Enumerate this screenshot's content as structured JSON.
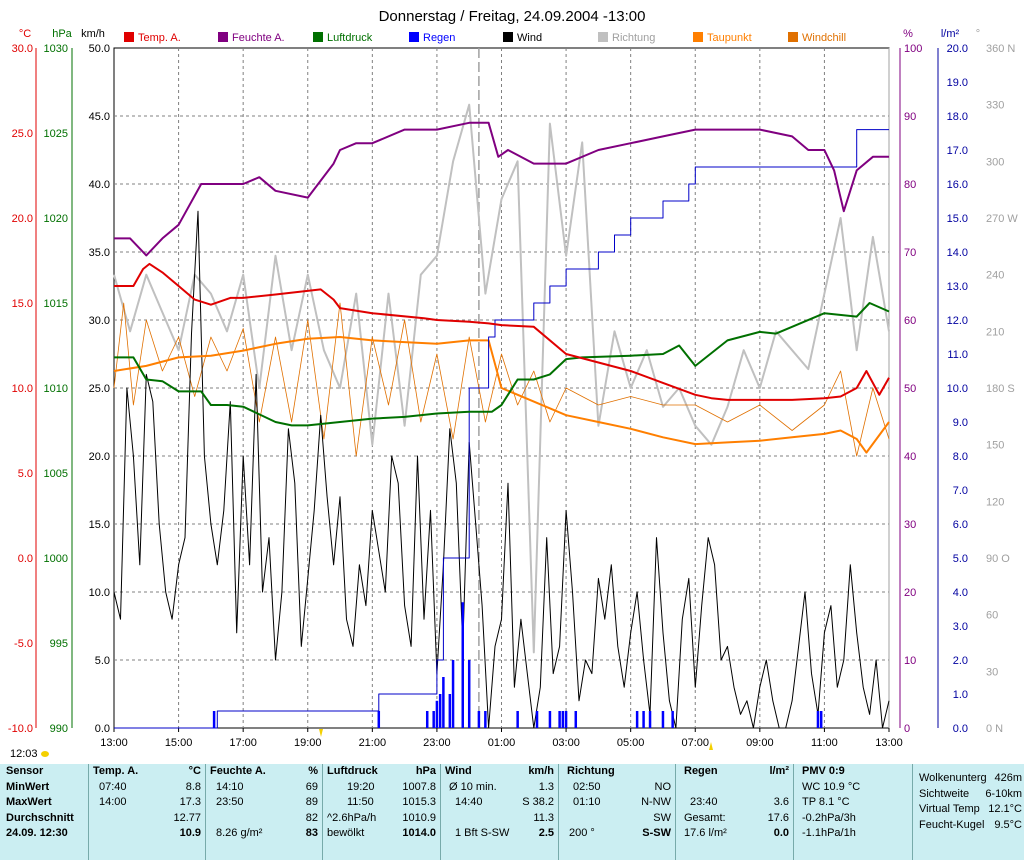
{
  "chart_data": {
    "type": "line",
    "title": "Donnerstag / Freitag, 24.09.2004  -13:00",
    "legend": [
      "Temp. A.",
      "Feuchte A.",
      "Luftdruck",
      "Regen",
      "Wind",
      "Richtung",
      "Taupunkt",
      "Windchill"
    ],
    "colors": {
      "temp": "#e00000",
      "hum": "#800080",
      "press": "#007000",
      "rain": "#0000ff",
      "wind": "#000000",
      "dir": "#c0c0c0",
      "dew": "#ff7f00",
      "chill": "#e07000"
    },
    "axes": {
      "temp": {
        "label": "°C",
        "ticks": [
          "30.0",
          "25.0",
          "20.0",
          "15.0",
          "10.0",
          "5.0",
          "0.0",
          "-5.0",
          "-10.0"
        ],
        "range": [
          -10,
          30
        ]
      },
      "press": {
        "label": "hPa",
        "ticks": [
          "1030",
          "1025",
          "1020",
          "1015",
          "1010",
          "1005",
          "1000",
          "995",
          "990"
        ],
        "range": [
          990,
          1030
        ]
      },
      "wind": {
        "label": "km/h",
        "ticks": [
          "50.0",
          "45.0",
          "40.0",
          "35.0",
          "30.0",
          "25.0",
          "20.0",
          "15.0",
          "10.0",
          "5.0",
          "0.0"
        ],
        "range": [
          0,
          50
        ]
      },
      "hum": {
        "label": "%",
        "ticks": [
          "100",
          "90",
          "80",
          "70",
          "60",
          "50",
          "40",
          "30",
          "20",
          "10",
          "0"
        ],
        "range": [
          0,
          100
        ]
      },
      "rain": {
        "label": "l/m²",
        "ticks": [
          "20.0",
          "19.0",
          "18.0",
          "17.0",
          "16.0",
          "15.0",
          "14.0",
          "13.0",
          "12.0",
          "11.0",
          "10.0",
          "9.0",
          "8.0",
          "7.0",
          "6.0",
          "5.0",
          "4.0",
          "3.0",
          "2.0",
          "1.0",
          "0.0"
        ],
        "range": [
          0,
          20
        ]
      },
      "dir": {
        "label": "°",
        "ticks": [
          "360 N",
          "330",
          "300",
          "270 W",
          "240",
          "210",
          "180 S",
          "150",
          "120",
          "90 O",
          "60",
          "30",
          "0 N"
        ],
        "range": [
          0,
          360
        ]
      },
      "x": {
        "ticks": [
          "13:00",
          "15:00",
          "17:00",
          "19:00",
          "21:00",
          "23:00",
          "01:00",
          "03:00",
          "05:00",
          "07:00",
          "09:00",
          "11:00",
          "13:00"
        ],
        "range_hours": [
          0,
          24
        ]
      }
    },
    "series": [
      {
        "name": "Temp. A.",
        "key": "temp",
        "axis": "temp",
        "x": [
          0,
          0.6,
          0.9,
          1.1,
          1.5,
          2,
          2.5,
          3,
          3.6,
          4,
          5,
          6.4,
          6.8,
          7,
          8,
          9.6,
          10,
          11,
          11.6,
          12,
          13,
          14,
          15,
          16,
          17,
          18,
          18.5,
          19,
          20,
          21,
          22,
          22.5,
          23,
          23.3,
          23.7,
          24
        ],
        "y": [
          16,
          16,
          17,
          17.3,
          16.8,
          16,
          15.2,
          14.9,
          15.3,
          15.3,
          15.5,
          15.8,
          15.2,
          14.7,
          14.4,
          14.1,
          14,
          13.9,
          13.8,
          13.7,
          13.6,
          12,
          11.5,
          11,
          10.3,
          9.6,
          9.4,
          9.3,
          9.3,
          9.3,
          9.4,
          9.5,
          10,
          11,
          9.6,
          10.6
        ]
      },
      {
        "name": "Feuchte A.",
        "key": "hum",
        "axis": "hum",
        "x": [
          0,
          0.5,
          1,
          1.5,
          2,
          2.7,
          3.5,
          4,
          4.5,
          5,
          6,
          6.8,
          7,
          7.5,
          8,
          9,
          10,
          11,
          11.6,
          11.9,
          12.2,
          13,
          14,
          15,
          16,
          17,
          18,
          19,
          20,
          21,
          21.5,
          22,
          22.3,
          22.6,
          23,
          23.5,
          24
        ],
        "y": [
          72,
          72,
          69.5,
          72,
          74,
          80,
          80,
          80,
          81,
          79,
          78,
          83,
          85,
          86,
          86,
          88,
          88,
          89,
          89,
          84,
          85,
          83,
          83,
          85,
          86,
          87,
          88,
          88,
          88,
          87,
          85,
          85,
          82,
          76,
          82,
          84,
          84
        ]
      },
      {
        "name": "Luftdruck",
        "key": "press",
        "axis": "press",
        "x": [
          0,
          0.6,
          1,
          1.5,
          2,
          2.7,
          3,
          3.5,
          4,
          5,
          5.5,
          6,
          7,
          8,
          9,
          10,
          11,
          11.7,
          12,
          12.5,
          13,
          13.5,
          14,
          14.5,
          16,
          17,
          17.5,
          18,
          19,
          20,
          20.5,
          21,
          22,
          23,
          23.4,
          24
        ],
        "y": [
          1011.8,
          1011.8,
          1010.5,
          1010.4,
          1009.8,
          1009.8,
          1009,
          1009,
          1008.9,
          1008,
          1007.8,
          1007.8,
          1008,
          1008.2,
          1008.3,
          1008.5,
          1008.6,
          1008.6,
          1009,
          1010.5,
          1010.5,
          1010.8,
          1011.7,
          1011.8,
          1011.9,
          1012,
          1012.5,
          1011.3,
          1012.8,
          1013.3,
          1013.2,
          1013.6,
          1014.4,
          1014.2,
          1015,
          1014.5
        ]
      },
      {
        "name": "Regen (Summe)",
        "key": "rain",
        "axis": "rain",
        "x": [
          0,
          3,
          3.2,
          8,
          8.2,
          9.8,
          10,
          10.2,
          11,
          11.6,
          11.8,
          12,
          13,
          13.5,
          14,
          15,
          15.5,
          16,
          16.5,
          17,
          17.8,
          18,
          20,
          21,
          22,
          22.5,
          23,
          23.5,
          24
        ],
        "y": [
          0,
          0,
          0.5,
          0.5,
          1,
          1,
          2,
          5,
          10,
          11.5,
          12,
          12,
          12.5,
          13,
          13.5,
          14,
          14.5,
          15,
          15,
          15.5,
          16,
          16.5,
          16.5,
          16.5,
          16.5,
          16.5,
          17.6,
          17.6,
          17.6
        ]
      },
      {
        "name": "Taupunkt",
        "key": "dew",
        "axis": "temp",
        "x": [
          0,
          1,
          2,
          3,
          4,
          5,
          6,
          7,
          8,
          9,
          10,
          11,
          11.6,
          12,
          13,
          14,
          15,
          16,
          17,
          18,
          19,
          20,
          21,
          22,
          22.5,
          23,
          23.3,
          24
        ],
        "y": [
          11,
          11.3,
          11.8,
          11.9,
          12.2,
          12.6,
          12.9,
          13,
          12.8,
          12.7,
          12.6,
          12.8,
          12.8,
          10,
          9.2,
          8.4,
          8,
          7.6,
          7.1,
          6.7,
          6.8,
          6.9,
          7.1,
          7.3,
          7.5,
          7,
          6.2,
          8
        ]
      },
      {
        "name": "Windchill",
        "key": "chill",
        "axis": "temp",
        "x": [
          0,
          0.3,
          0.6,
          1,
          1.5,
          2,
          2.5,
          3,
          3.5,
          4,
          4.5,
          5,
          5.5,
          6,
          6.5,
          7,
          7.5,
          8,
          8.5,
          9,
          9.5,
          10,
          10.5,
          11,
          11.5,
          12,
          12.5,
          13,
          13.5,
          14,
          15,
          16,
          17,
          18,
          19,
          20,
          21,
          22,
          22.5,
          23,
          23.5,
          24
        ],
        "y": [
          10,
          15,
          9,
          14,
          11,
          13,
          9.5,
          13,
          11,
          13.5,
          8,
          13,
          8,
          14,
          7,
          15,
          6,
          13,
          9,
          14,
          8,
          12,
          7,
          13,
          8,
          12,
          9,
          11,
          8,
          10,
          9,
          9.5,
          9,
          9,
          8,
          9,
          7.5,
          9,
          11,
          6,
          10,
          7
        ]
      },
      {
        "name": "Wind",
        "key": "wind",
        "axis": "wind",
        "x": [
          0,
          0.2,
          0.4,
          0.6,
          0.8,
          1,
          1.2,
          1.4,
          1.6,
          1.8,
          2,
          2.2,
          2.4,
          2.6,
          2.8,
          3,
          3.2,
          3.4,
          3.6,
          3.8,
          4,
          4.2,
          4.4,
          4.6,
          4.8,
          5,
          5.2,
          5.4,
          5.6,
          5.8,
          6,
          6.2,
          6.4,
          6.6,
          6.8,
          7,
          7.2,
          7.4,
          7.6,
          7.8,
          8,
          8.2,
          8.4,
          8.6,
          8.8,
          9,
          9.2,
          9.4,
          9.6,
          9.8,
          10,
          10.2,
          10.4,
          10.6,
          10.8,
          11,
          11.2,
          11.4,
          11.6,
          11.8,
          12,
          12.2,
          12.4,
          12.6,
          12.8,
          13,
          13.2,
          13.4,
          13.6,
          13.8,
          14,
          14.2,
          14.4,
          14.6,
          14.8,
          15,
          15.2,
          15.4,
          15.6,
          15.8,
          16,
          16.2,
          16.4,
          16.6,
          16.8,
          17,
          17.2,
          17.4,
          17.6,
          17.8,
          18,
          18.2,
          18.4,
          18.6,
          18.8,
          19,
          19.2,
          19.4,
          19.6,
          19.8,
          20,
          20.2,
          20.4,
          20.6,
          20.8,
          21,
          21.2,
          21.4,
          21.6,
          21.8,
          22,
          22.2,
          22.4,
          22.6,
          22.8,
          23,
          23.2,
          23.4,
          23.6,
          23.8,
          24
        ],
        "y": [
          10,
          8,
          25,
          20,
          12,
          26,
          24,
          15,
          10,
          8,
          12,
          14,
          29,
          38,
          20,
          15,
          12,
          16,
          24,
          7,
          20,
          12,
          26,
          10,
          14,
          5,
          10,
          22,
          18,
          6,
          11,
          16,
          23,
          17,
          12,
          17,
          8,
          6,
          12,
          9,
          16,
          13,
          10,
          20,
          18,
          9,
          6,
          20,
          8,
          16,
          4,
          12,
          22,
          18,
          6,
          21,
          15,
          9,
          0,
          6,
          8,
          18,
          3,
          8,
          4,
          0,
          3,
          14,
          4,
          6,
          16,
          10,
          2,
          5,
          4,
          11,
          8,
          12,
          6,
          3,
          7,
          10,
          5,
          1,
          14,
          7,
          2,
          0,
          8,
          11,
          3,
          9,
          14,
          12,
          5,
          6,
          3,
          1,
          2,
          0,
          3,
          5,
          2,
          0,
          0,
          2,
          6,
          10,
          4,
          1,
          7,
          9,
          3,
          5,
          12,
          7,
          3,
          1,
          5,
          0,
          2
        ]
      },
      {
        "name": "Richtung",
        "key": "dir",
        "axis": "dir",
        "x": [
          0,
          0.5,
          1,
          1.5,
          2,
          2.5,
          3,
          3.5,
          4,
          4.5,
          5,
          5.5,
          6,
          6.5,
          7,
          7.5,
          8,
          8.5,
          9,
          9.5,
          10,
          10.5,
          11,
          11.5,
          12,
          12.5,
          13,
          13.5,
          14,
          14.5,
          15,
          15.5,
          16,
          16.5,
          17,
          17.5,
          18,
          18.5,
          19,
          19.5,
          20,
          20.5,
          21,
          21.5,
          22,
          22.5,
          23,
          23.5,
          24
        ],
        "y": [
          240,
          210,
          240,
          220,
          200,
          240,
          230,
          210,
          240,
          180,
          250,
          200,
          240,
          200,
          180,
          230,
          150,
          230,
          160,
          240,
          250,
          300,
          330,
          230,
          280,
          300,
          40,
          320,
          250,
          310,
          160,
          210,
          180,
          200,
          170,
          180,
          160,
          150,
          170,
          200,
          180,
          210,
          200,
          190,
          230,
          270,
          200,
          260,
          210
        ]
      }
    ],
    "rain_bars": {
      "x": [
        3.1,
        8.2,
        9.7,
        9.9,
        10,
        10.1,
        10.2,
        10.4,
        10.5,
        10.8,
        11,
        11.3,
        11.5,
        12.5,
        13.1,
        13.5,
        13.8,
        13.9,
        14,
        14.3,
        16.2,
        16.4,
        16.6,
        17,
        17.3,
        21.8,
        21.9
      ],
      "y": [
        0.5,
        0.5,
        0.5,
        0.5,
        0.8,
        1,
        1.5,
        1,
        2,
        3.7,
        2,
        0.5,
        0.5,
        0.5,
        0.5,
        0.5,
        0.5,
        0.5,
        0.5,
        0.5,
        0.5,
        0.5,
        0.5,
        0.5,
        0.5,
        0.5,
        0.5
      ]
    }
  },
  "markers": {
    "time_left": "12:03",
    "rain_start": "19:00",
    "rain_end": "07:00"
  },
  "stats": {
    "col0": [
      "Sensor",
      "MinWert",
      "MaxWert",
      "Durchschnitt",
      "24.09. 12:30"
    ],
    "temp": {
      "title": "Temp. A.",
      "unit": "°C",
      "rows": [
        [
          "07:40",
          "8.8"
        ],
        [
          "14:00",
          "17.3"
        ],
        [
          "",
          "12.77"
        ],
        [
          "",
          "10.9"
        ]
      ]
    },
    "hum": {
      "title": "Feuchte A.",
      "unit": "%",
      "rows": [
        [
          "14:10",
          "69"
        ],
        [
          "23:50",
          "89"
        ],
        [
          "",
          "82"
        ],
        [
          "8.26 g/m²",
          "83"
        ]
      ]
    },
    "press": {
      "title": "Luftdruck",
      "unit": "hPa",
      "rows": [
        [
          "19:20",
          "1007.8"
        ],
        [
          "11:50",
          "1015.3"
        ],
        [
          "^2.6hPa/h",
          "1010.9"
        ],
        [
          "bewölkt",
          "1014.0"
        ]
      ]
    },
    "wind": {
      "title": "Wind",
      "unit": "km/h",
      "rows": [
        [
          "Ø 10 min.",
          "1.3"
        ],
        [
          "14:40",
          "S 38.2"
        ],
        [
          "",
          "11.3"
        ],
        [
          "1 Bft S-SW",
          "2.5"
        ]
      ]
    },
    "dir": {
      "title": "Richtung",
      "unit": "",
      "rows": [
        [
          "02:50",
          "NO"
        ],
        [
          "01:10",
          "N-NW"
        ],
        [
          "",
          "SW"
        ],
        [
          "200 °",
          "S-SW"
        ]
      ]
    },
    "rain": {
      "title": "Regen",
      "unit": "l/m²",
      "rows": [
        [
          "",
          ""
        ],
        [
          "23:40",
          "3.6"
        ],
        [
          "Gesamt:",
          "17.6"
        ],
        [
          "17.6 l/m²",
          "0.0"
        ]
      ]
    },
    "pmv": {
      "title": "PMV 0:9",
      "rows": [
        "WC 10.9 °C",
        "TP 8.1 °C",
        "-0.2hPa/3h",
        "-1.1hPa/1h"
      ]
    },
    "extra": {
      "rows": [
        [
          "Wolkenunterg",
          "426m"
        ],
        [
          "Sichtweite",
          "6-10km"
        ],
        [
          "Virtual Temp",
          "12.1°C"
        ],
        [
          "Feucht-Kugel",
          "9.5°C"
        ]
      ]
    }
  }
}
